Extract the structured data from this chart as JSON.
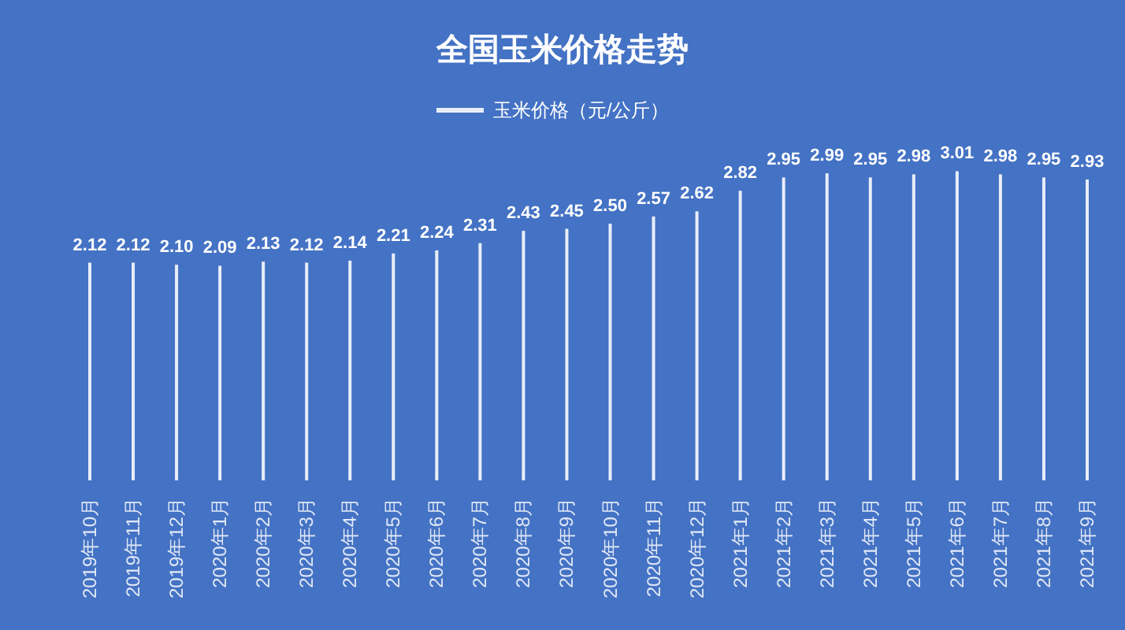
{
  "chart_data": {
    "type": "bar",
    "title": "全国玉米价格走势",
    "categories": [
      "2019年10月",
      "2019年11月",
      "2019年12月",
      "2020年1月",
      "2020年2月",
      "2020年3月",
      "2020年4月",
      "2020年5月",
      "2020年6月",
      "2020年7月",
      "2020年8月",
      "2020年9月",
      "2020年10月",
      "2020年11月",
      "2020年12月",
      "2021年1月",
      "2021年2月",
      "2021年3月",
      "2021年4月",
      "2021年5月",
      "2021年6月",
      "2021年7月",
      "2021年8月",
      "2021年9月"
    ],
    "series": [
      {
        "name": "玉米价格（元/公斤）",
        "color": "#e8eef8",
        "values": [
          2.12,
          2.12,
          2.1,
          2.09,
          2.13,
          2.12,
          2.14,
          2.21,
          2.24,
          2.31,
          2.43,
          2.45,
          2.5,
          2.57,
          2.62,
          2.82,
          2.95,
          2.99,
          2.95,
          2.98,
          3.01,
          2.98,
          2.95,
          2.93
        ],
        "value_labels": [
          "2.12",
          "2.12",
          "2.10",
          "2.09",
          "2.13",
          "2.12",
          "2.14",
          "2.21",
          "2.24",
          "2.31",
          "2.43",
          "2.45",
          "2.50",
          "2.57",
          "2.62",
          "2.82",
          "2.95",
          "2.99",
          "2.95",
          "2.98",
          "3.01",
          "2.98",
          "2.95",
          "2.93"
        ]
      }
    ],
    "legend": "top"
  }
}
